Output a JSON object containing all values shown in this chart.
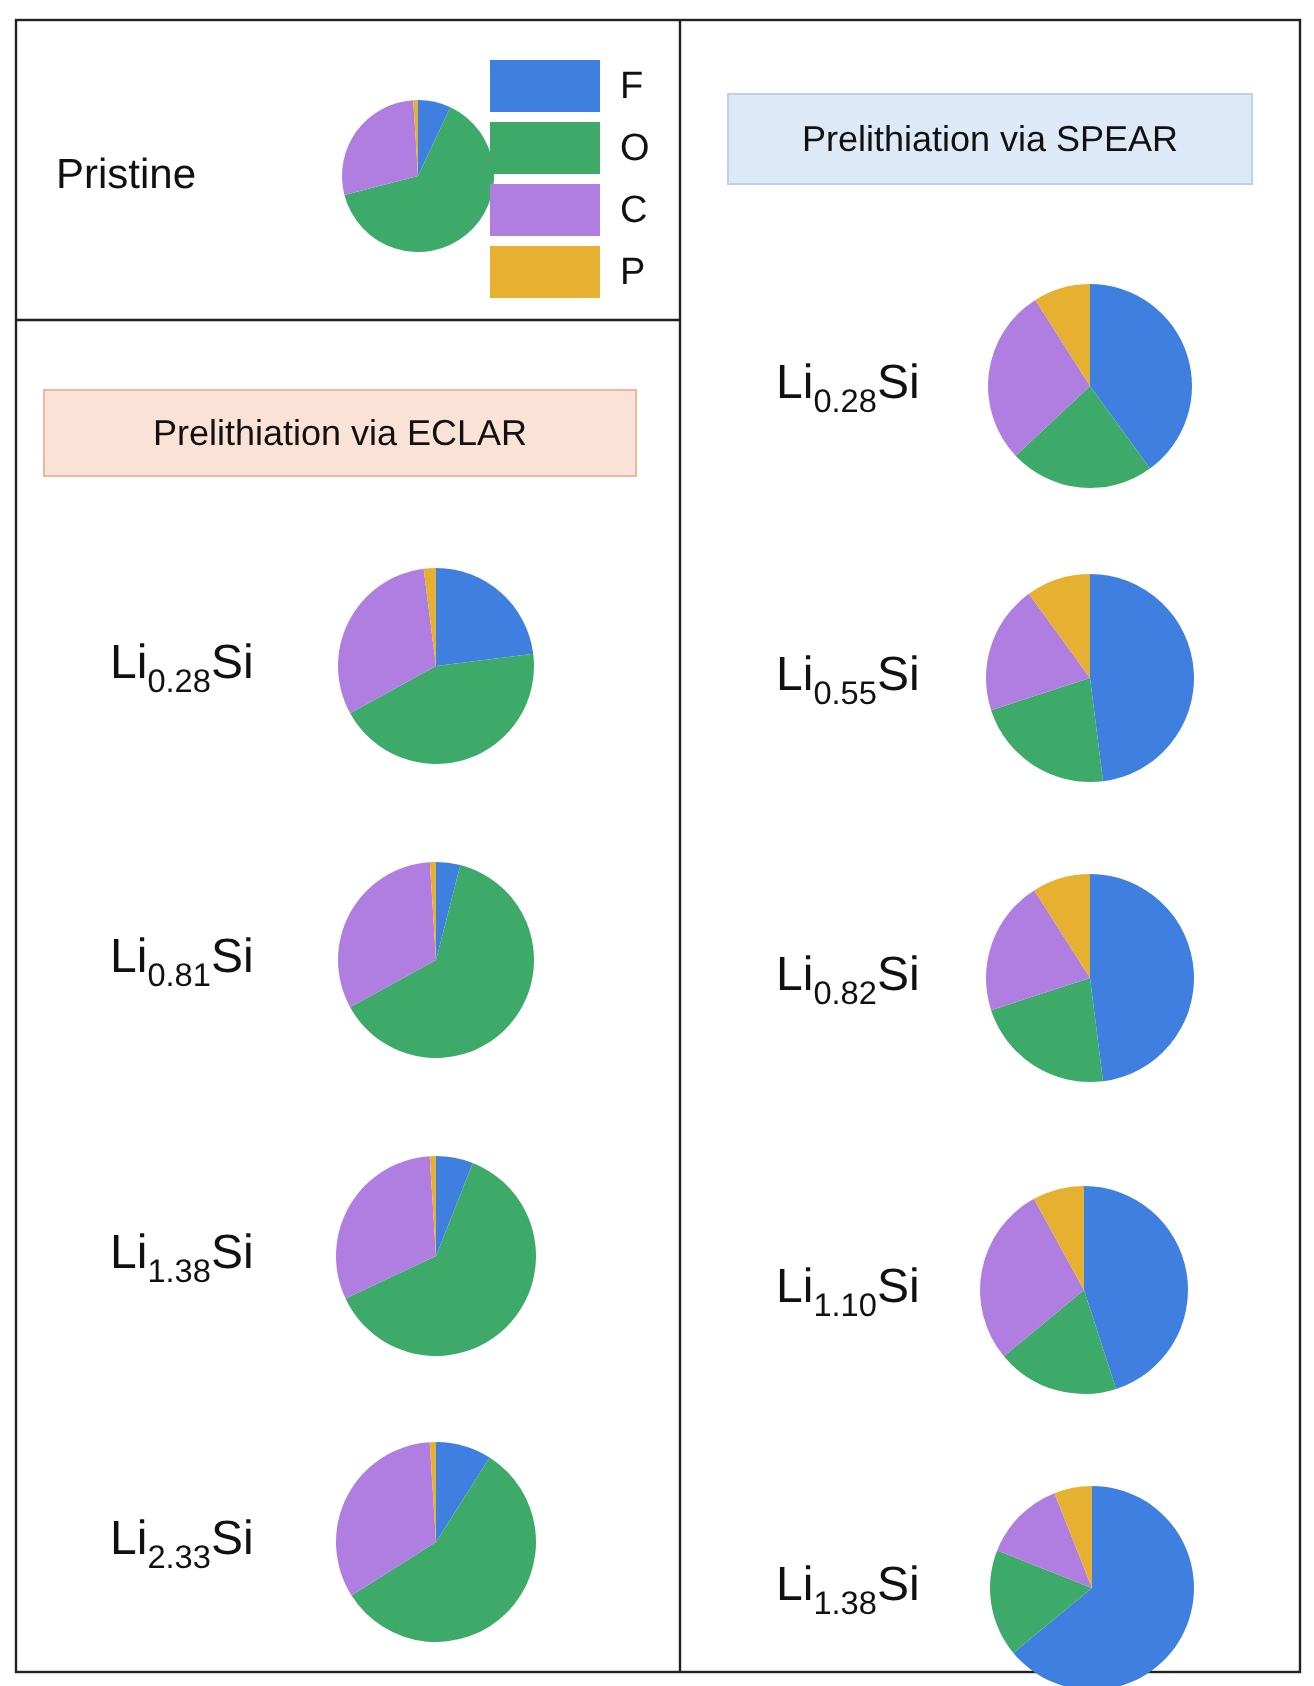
{
  "chart_data": [
    {
      "type": "pie",
      "title": "Pristine",
      "categories": [
        "F",
        "O",
        "C",
        "P"
      ],
      "values": [
        7,
        64,
        28,
        1
      ],
      "colors": [
        "#3f7fe0",
        "#3daa6a",
        "#b07ee0",
        "#e6b030"
      ],
      "legend": "right"
    },
    {
      "type": "pie",
      "title": "Li$_{0.28}$Si",
      "subtitle": "Prelithiation via ECLAR",
      "categories": [
        null,
        null,
        null,
        null
      ],
      "values": [
        23,
        44,
        31,
        2
      ],
      "colors": [
        "#3f7fe0",
        "#3daa6a",
        "#b07ee0",
        "#e6b030"
      ]
    },
    {
      "type": "pie",
      "title": "Li$_{0.81}$Si",
      "categories": [
        null,
        null,
        null,
        null
      ],
      "values": [
        4,
        63,
        32,
        1
      ],
      "colors": [
        "#3f7fe0",
        "#3daa6a",
        "#b07ee0",
        "#e6b030"
      ]
    },
    {
      "type": "pie",
      "title": "Li$_{1.38}$Si",
      "categories": [
        null,
        null,
        null,
        null
      ],
      "values": [
        6,
        62,
        31,
        1
      ],
      "colors": [
        "#3f7fe0",
        "#3daa6a",
        "#b07ee0",
        "#e6b030"
      ]
    },
    {
      "type": "pie",
      "title": "Li$_{2.33}$Si",
      "categories": [
        null,
        null,
        null,
        null
      ],
      "values": [
        9,
        57,
        33,
        1
      ],
      "colors": [
        "#3f7fe0",
        "#3daa6a",
        "#b07ee0",
        "#e6b030"
      ]
    },
    {
      "type": "pie",
      "title": "Li$_{0.28}$Si",
      "subtitle": "Prelithiation via SPEAR",
      "categories": [
        null,
        null,
        null,
        null
      ],
      "values": [
        40,
        23,
        28,
        9
      ],
      "colors": [
        "#3f7fe0",
        "#3daa6a",
        "#b07ee0",
        "#e6b030"
      ]
    },
    {
      "type": "pie",
      "title": "Li$_{0.55}$Si",
      "categories": [
        null,
        null,
        null,
        null
      ],
      "values": [
        48,
        22,
        20,
        10
      ],
      "colors": [
        "#3f7fe0",
        "#3daa6a",
        "#b07ee0",
        "#e6b030"
      ]
    },
    {
      "type": "pie",
      "title": "Li$_{0.82}$Si",
      "categories": [
        null,
        null,
        null,
        null
      ],
      "values": [
        48,
        22,
        21,
        9
      ],
      "colors": [
        "#3f7fe0",
        "#3daa6a",
        "#b07ee0",
        "#e6b030"
      ]
    },
    {
      "type": "pie",
      "title": "Li$_{1.10}$Si",
      "categories": [
        null,
        null,
        null,
        null
      ],
      "values": [
        45,
        19,
        28,
        8
      ],
      "colors": [
        "#3f7fe0",
        "#3daa6a",
        "#b07ee0",
        "#e6b030"
      ]
    },
    {
      "type": "pie",
      "title": "Li$_{1.38}$Si",
      "categories": [
        null,
        null,
        null,
        null
      ],
      "values": [
        64,
        17,
        13,
        6
      ],
      "colors": [
        "#3f7fe0",
        "#3daa6a",
        "#b07ee0",
        "#e6b030"
      ]
    }
  ]
}
